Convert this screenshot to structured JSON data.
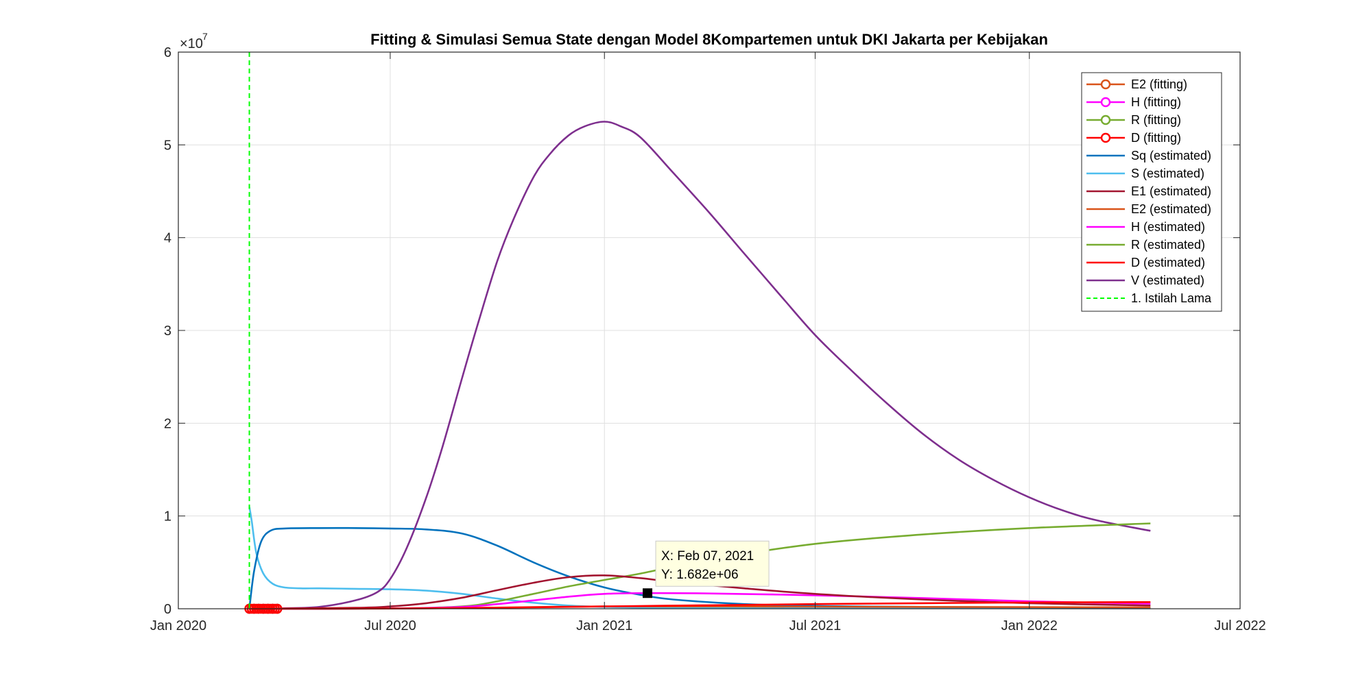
{
  "chart_data": {
    "type": "line",
    "title": "Fitting & Simulasi Semua State dengan Model 8Kompartemen untuk DKI Jakarta per Kebijakan",
    "xlabel": "",
    "ylabel": "",
    "y_exponent_label": "×10",
    "y_exponent_power": "7",
    "x_range": [
      "2020-01-01",
      "2022-07-01"
    ],
    "ylim": [
      0,
      60000000
    ],
    "x_ticks": [
      {
        "date": "2020-01-01",
        "label": "Jan 2020"
      },
      {
        "date": "2020-07-01",
        "label": "Jul 2020"
      },
      {
        "date": "2021-01-01",
        "label": "Jan 2021"
      },
      {
        "date": "2021-07-01",
        "label": "Jul 2021"
      },
      {
        "date": "2022-01-01",
        "label": "Jan 2022"
      },
      {
        "date": "2022-07-01",
        "label": "Jul 2022"
      }
    ],
    "y_ticks": [
      {
        "value": 0,
        "label": "0"
      },
      {
        "value": 10000000,
        "label": "1"
      },
      {
        "value": 20000000,
        "label": "2"
      },
      {
        "value": 30000000,
        "label": "3"
      },
      {
        "value": 40000000,
        "label": "4"
      },
      {
        "value": 50000000,
        "label": "5"
      },
      {
        "value": 60000000,
        "label": "6"
      }
    ],
    "grid": true,
    "legend_position": "top-right",
    "series": [
      {
        "name": "E2 (fitting)",
        "color": "#D95319",
        "style": "marker",
        "x": [
          "2020-03-02",
          "2020-03-06",
          "2020-03-10",
          "2020-03-14",
          "2020-03-18",
          "2020-03-22",
          "2020-03-26"
        ],
        "y": [
          0,
          0,
          0,
          0,
          0,
          0,
          0
        ]
      },
      {
        "name": "H (fitting)",
        "color": "#FF00FF",
        "style": "marker",
        "x": [
          "2020-03-02",
          "2020-03-06",
          "2020-03-10",
          "2020-03-14",
          "2020-03-18",
          "2020-03-22",
          "2020-03-26"
        ],
        "y": [
          0,
          0,
          0,
          0,
          0,
          0,
          0
        ]
      },
      {
        "name": "R (fitting)",
        "color": "#77AC30",
        "style": "marker",
        "x": [
          "2020-03-02",
          "2020-03-06",
          "2020-03-10",
          "2020-03-14",
          "2020-03-18",
          "2020-03-22",
          "2020-03-26"
        ],
        "y": [
          0,
          0,
          0,
          0,
          0,
          0,
          0
        ]
      },
      {
        "name": "D (fitting)",
        "color": "#FF0000",
        "style": "marker",
        "x": [
          "2020-03-02",
          "2020-03-04",
          "2020-03-06",
          "2020-03-08",
          "2020-03-10",
          "2020-03-12",
          "2020-03-14",
          "2020-03-16",
          "2020-03-18",
          "2020-03-20",
          "2020-03-22",
          "2020-03-24",
          "2020-03-26"
        ],
        "y": [
          0,
          0,
          0,
          0,
          0,
          0,
          0,
          0,
          0,
          0,
          0,
          0,
          0
        ]
      },
      {
        "name": "Sq (estimated)",
        "color": "#0072BD",
        "style": "line",
        "x": [
          "2020-03-02",
          "2020-03-06",
          "2020-03-12",
          "2020-03-20",
          "2020-04-01",
          "2020-05-01",
          "2020-06-01",
          "2020-07-01",
          "2020-08-01",
          "2020-09-01",
          "2020-10-01",
          "2020-11-01",
          "2020-12-01",
          "2021-01-01",
          "2021-02-01",
          "2021-03-01",
          "2021-05-01",
          "2021-07-01",
          "2021-10-01",
          "2022-01-01",
          "2022-04-15"
        ],
        "y": [
          0,
          4000000,
          7200000,
          8400000,
          8650000,
          8700000,
          8700000,
          8650000,
          8550000,
          8100000,
          6800000,
          5000000,
          3500000,
          2300000,
          1500000,
          1000000,
          500000,
          300000,
          200000,
          150000,
          120000
        ]
      },
      {
        "name": "S (estimated)",
        "color": "#4DBEEE",
        "style": "line",
        "x": [
          "2020-03-02",
          "2020-03-04",
          "2020-03-08",
          "2020-03-14",
          "2020-03-22",
          "2020-04-01",
          "2020-04-15",
          "2020-05-01",
          "2020-06-01",
          "2020-07-01",
          "2020-08-01",
          "2020-09-01",
          "2020-10-01",
          "2020-11-01",
          "2020-12-01",
          "2021-01-01",
          "2021-03-01",
          "2021-06-01",
          "2022-01-01",
          "2022-04-15"
        ],
        "y": [
          11000000,
          9500000,
          6000000,
          3800000,
          2700000,
          2300000,
          2200000,
          2200000,
          2150000,
          2100000,
          1950000,
          1600000,
          1100000,
          650000,
          350000,
          200000,
          100000,
          80000,
          60000,
          50000
        ]
      },
      {
        "name": "E1 (estimated)",
        "color": "#A2142F",
        "style": "line",
        "x": [
          "2020-03-02",
          "2020-06-01",
          "2020-07-01",
          "2020-08-01",
          "2020-09-01",
          "2020-10-01",
          "2020-11-01",
          "2020-12-01",
          "2021-01-01",
          "2021-02-01",
          "2021-03-01",
          "2021-05-01",
          "2021-07-01",
          "2021-10-01",
          "2022-01-01",
          "2022-04-15"
        ],
        "y": [
          0,
          100000,
          250000,
          600000,
          1200000,
          2000000,
          2800000,
          3400000,
          3600000,
          3300000,
          2900000,
          2200000,
          1600000,
          1000000,
          600000,
          350000
        ]
      },
      {
        "name": "E2 (estimated)",
        "color": "#D95319",
        "style": "line",
        "x": [
          "2020-03-02",
          "2020-07-01",
          "2020-09-01",
          "2020-11-01",
          "2021-01-01",
          "2021-04-01",
          "2021-07-01",
          "2022-01-01",
          "2022-04-15"
        ],
        "y": [
          0,
          20000,
          80000,
          180000,
          250000,
          250000,
          220000,
          180000,
          150000
        ]
      },
      {
        "name": "H (estimated)",
        "color": "#FF00FF",
        "style": "line",
        "x": [
          "2020-03-02",
          "2020-07-01",
          "2020-09-01",
          "2020-10-01",
          "2020-11-01",
          "2020-12-01",
          "2021-01-01",
          "2021-02-07",
          "2021-04-01",
          "2021-07-01",
          "2021-10-01",
          "2022-01-01",
          "2022-04-15"
        ],
        "y": [
          0,
          30000,
          200000,
          500000,
          900000,
          1300000,
          1600000,
          1682000,
          1650000,
          1450000,
          1150000,
          800000,
          550000
        ]
      },
      {
        "name": "R (estimated)",
        "color": "#77AC30",
        "style": "line",
        "x": [
          "2020-03-02",
          "2020-07-01",
          "2020-09-01",
          "2020-10-01",
          "2020-11-01",
          "2020-12-01",
          "2021-01-01",
          "2021-02-01",
          "2021-04-01",
          "2021-07-01",
          "2021-10-01",
          "2022-01-01",
          "2022-04-15"
        ],
        "y": [
          0,
          30000,
          250000,
          800000,
          1600000,
          2400000,
          3100000,
          3800000,
          5300000,
          7000000,
          8000000,
          8700000,
          9200000
        ]
      },
      {
        "name": "D (estimated)",
        "color": "#FF0000",
        "style": "line",
        "x": [
          "2020-03-02",
          "2020-07-01",
          "2020-10-01",
          "2021-01-01",
          "2021-04-01",
          "2021-07-01",
          "2021-10-01",
          "2022-01-01",
          "2022-04-15"
        ],
        "y": [
          0,
          20000,
          120000,
          250000,
          380000,
          500000,
          600000,
          680000,
          720000
        ]
      },
      {
        "name": "V (estimated)",
        "color": "#7E2F8E",
        "style": "line",
        "x": [
          "2020-03-02",
          "2020-04-01",
          "2020-05-01",
          "2020-06-01",
          "2020-06-20",
          "2020-07-01",
          "2020-07-15",
          "2020-08-01",
          "2020-08-15",
          "2020-09-01",
          "2020-09-15",
          "2020-10-01",
          "2020-10-15",
          "2020-11-01",
          "2020-11-15",
          "2020-12-01",
          "2020-12-15",
          "2021-01-01",
          "2021-01-15",
          "2021-02-01",
          "2021-03-01",
          "2021-04-01",
          "2021-05-01",
          "2021-06-01",
          "2021-07-01",
          "2021-08-01",
          "2021-09-01",
          "2021-10-01",
          "2021-11-01",
          "2021-12-01",
          "2022-01-01",
          "2022-02-01",
          "2022-03-01",
          "2022-04-15"
        ],
        "y": [
          0,
          50000,
          200000,
          900000,
          1800000,
          3200000,
          6500000,
          12000000,
          17500000,
          25000000,
          31000000,
          37500000,
          42000000,
          46500000,
          49000000,
          51000000,
          52000000,
          52500000,
          52000000,
          50800000,
          47000000,
          42700000,
          38300000,
          33800000,
          29500000,
          25700000,
          22100000,
          18900000,
          16100000,
          13900000,
          12000000,
          10500000,
          9500000,
          8400000
        ]
      }
    ],
    "policy_lines": [
      {
        "name": "1. Istilah Lama",
        "color": "#00FF00",
        "date": "2020-03-02"
      }
    ],
    "datatip": {
      "x": "2021-02-07",
      "y": 1682000,
      "x_text": "X: Feb 07, 2021",
      "y_text": "Y: 1.682e+06"
    }
  }
}
